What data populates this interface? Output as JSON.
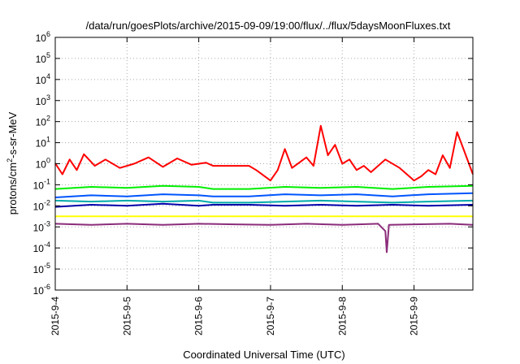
{
  "chart_data": {
    "type": "line",
    "title": "/data/run/goesPlots/archive/2015-09-09/19:00/flux/../flux/5daysMoonFluxes.txt",
    "xlabel": "Coordinated Universal Time (UTC)",
    "ylabel_parts": [
      "protons/cm",
      "2",
      "-s-sr-MeV"
    ],
    "y_scale": "log",
    "ylim": [
      1e-06,
      1000000.0
    ],
    "y_ticks": [
      {
        "base": "10",
        "exp": "-6",
        "value": -6
      },
      {
        "base": "10",
        "exp": "-5",
        "value": -5
      },
      {
        "base": "10",
        "exp": "-4",
        "value": -4
      },
      {
        "base": "10",
        "exp": "-3",
        "value": -3
      },
      {
        "base": "10",
        "exp": "-2",
        "value": -2
      },
      {
        "base": "10",
        "exp": "-1",
        "value": -1
      },
      {
        "base": "10",
        "exp": "0",
        "value": 0
      },
      {
        "base": "10",
        "exp": "1",
        "value": 1
      },
      {
        "base": "10",
        "exp": "2",
        "value": 2
      },
      {
        "base": "10",
        "exp": "3",
        "value": 3
      },
      {
        "base": "10",
        "exp": "4",
        "value": 4
      },
      {
        "base": "10",
        "exp": "5",
        "value": 5
      },
      {
        "base": "10",
        "exp": "6",
        "value": 6
      }
    ],
    "x_ticks": [
      "2015-9-4",
      "2015-9-5",
      "2015-9-6",
      "2015-9-7",
      "2015-9-8",
      "2015-9-9"
    ],
    "xlim_days": [
      0,
      5.82
    ],
    "grid": true,
    "series": [
      {
        "color": "#ff0000",
        "points": [
          [
            0,
            0.02
          ],
          [
            0.1,
            -0.5
          ],
          [
            0.2,
            0.2
          ],
          [
            0.3,
            -0.3
          ],
          [
            0.4,
            0.45
          ],
          [
            0.55,
            -0.1
          ],
          [
            0.7,
            0.2
          ],
          [
            0.9,
            -0.2
          ],
          [
            1.1,
            0.0
          ],
          [
            1.3,
            0.3
          ],
          [
            1.5,
            -0.15
          ],
          [
            1.7,
            0.25
          ],
          [
            1.9,
            -0.05
          ],
          [
            2.1,
            0.05
          ],
          [
            2.2,
            -0.1
          ],
          [
            2.7,
            -0.1
          ],
          [
            2.8,
            -0.3
          ],
          [
            3.0,
            -0.8
          ],
          [
            3.1,
            -0.3
          ],
          [
            3.2,
            0.7
          ],
          [
            3.3,
            -0.2
          ],
          [
            3.5,
            0.3
          ],
          [
            3.6,
            -0.1
          ],
          [
            3.7,
            1.8
          ],
          [
            3.8,
            0.4
          ],
          [
            3.9,
            0.9
          ],
          [
            4.0,
            0.0
          ],
          [
            4.1,
            0.2
          ],
          [
            4.2,
            -0.3
          ],
          [
            4.3,
            -0.1
          ],
          [
            4.4,
            -0.4
          ],
          [
            4.6,
            0.2
          ],
          [
            4.8,
            -0.2
          ],
          [
            5.0,
            -0.8
          ],
          [
            5.1,
            -0.6
          ],
          [
            5.2,
            -0.3
          ],
          [
            5.3,
            -0.5
          ],
          [
            5.4,
            0.4
          ],
          [
            5.5,
            -0.2
          ],
          [
            5.6,
            1.5
          ],
          [
            5.7,
            0.6
          ],
          [
            5.82,
            -0.5
          ]
        ]
      },
      {
        "color": "#00ee00",
        "points": [
          [
            0,
            -1.2
          ],
          [
            0.5,
            -1.1
          ],
          [
            1.0,
            -1.15
          ],
          [
            1.5,
            -1.05
          ],
          [
            2.0,
            -1.1
          ],
          [
            2.2,
            -1.2
          ],
          [
            2.7,
            -1.2
          ],
          [
            3.2,
            -1.1
          ],
          [
            3.7,
            -1.15
          ],
          [
            4.2,
            -1.1
          ],
          [
            4.7,
            -1.2
          ],
          [
            5.2,
            -1.1
          ],
          [
            5.82,
            -1.05
          ]
        ]
      },
      {
        "color": "#0055ff",
        "points": [
          [
            0,
            -1.6
          ],
          [
            0.5,
            -1.5
          ],
          [
            1.0,
            -1.55
          ],
          [
            1.5,
            -1.45
          ],
          [
            2.0,
            -1.5
          ],
          [
            2.2,
            -1.55
          ],
          [
            2.7,
            -1.55
          ],
          [
            3.2,
            -1.45
          ],
          [
            3.7,
            -1.5
          ],
          [
            4.2,
            -1.45
          ],
          [
            4.7,
            -1.55
          ],
          [
            5.2,
            -1.45
          ],
          [
            5.82,
            -1.4
          ]
        ]
      },
      {
        "color": "#00aaaa",
        "points": [
          [
            0,
            -1.75
          ],
          [
            0.5,
            -1.8
          ],
          [
            1.0,
            -1.75
          ],
          [
            1.5,
            -1.8
          ],
          [
            2.0,
            -1.75
          ],
          [
            2.2,
            -1.85
          ],
          [
            2.7,
            -1.85
          ],
          [
            3.2,
            -1.8
          ],
          [
            3.7,
            -1.75
          ],
          [
            4.2,
            -1.8
          ],
          [
            4.7,
            -1.85
          ],
          [
            5.2,
            -1.8
          ],
          [
            5.82,
            -1.75
          ]
        ]
      },
      {
        "color": "#0000aa",
        "points": [
          [
            0,
            -2.05
          ],
          [
            0.5,
            -1.95
          ],
          [
            1.0,
            -2.0
          ],
          [
            1.5,
            -1.9
          ],
          [
            2.0,
            -2.0
          ],
          [
            2.2,
            -1.95
          ],
          [
            2.7,
            -1.95
          ],
          [
            3.2,
            -2.0
          ],
          [
            3.7,
            -1.95
          ],
          [
            4.2,
            -2.0
          ],
          [
            4.7,
            -1.95
          ],
          [
            5.2,
            -2.0
          ],
          [
            5.82,
            -1.95
          ]
        ]
      },
      {
        "color": "#ffff00",
        "points": [
          [
            0,
            -2.5
          ],
          [
            1.0,
            -2.5
          ],
          [
            2.0,
            -2.5
          ],
          [
            3.0,
            -2.5
          ],
          [
            4.0,
            -2.5
          ],
          [
            5.0,
            -2.5
          ],
          [
            5.82,
            -2.5
          ]
        ]
      },
      {
        "color": "#8b2c7a",
        "points": [
          [
            0,
            -2.85
          ],
          [
            0.5,
            -2.9
          ],
          [
            1.0,
            -2.85
          ],
          [
            1.5,
            -2.9
          ],
          [
            2.0,
            -2.85
          ],
          [
            2.5,
            -2.88
          ],
          [
            3.0,
            -2.9
          ],
          [
            3.5,
            -2.85
          ],
          [
            4.0,
            -2.9
          ],
          [
            4.5,
            -2.85
          ],
          [
            4.6,
            -3.2
          ],
          [
            4.62,
            -4.2
          ],
          [
            4.65,
            -2.9
          ],
          [
            5.0,
            -2.88
          ],
          [
            5.5,
            -2.85
          ],
          [
            5.82,
            -2.9
          ]
        ]
      }
    ]
  }
}
